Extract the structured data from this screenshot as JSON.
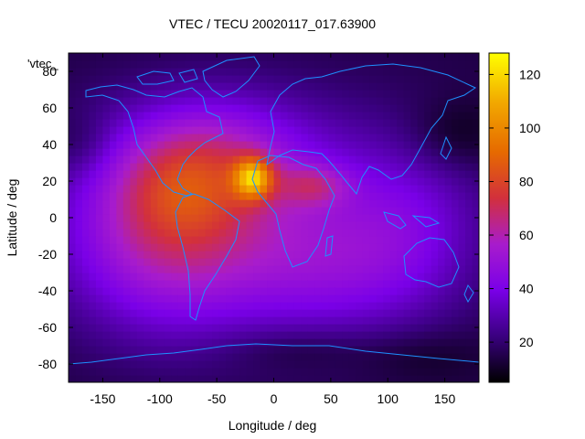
{
  "chart_data": {
    "type": "heatmap",
    "title": "VTEC / TECU 20020117_017.63900",
    "xlabel": "Longitude / deg",
    "ylabel": "Latitude / deg",
    "xlim": [
      -180,
      180
    ],
    "ylim": [
      -90,
      90
    ],
    "x_ticks": [
      -150,
      -100,
      -50,
      0,
      50,
      100,
      150
    ],
    "y_ticks": [
      -80,
      -60,
      -40,
      -20,
      0,
      20,
      40,
      60,
      80
    ],
    "colorbar": {
      "label": "",
      "range": [
        5,
        128
      ],
      "ticks": [
        20,
        40,
        60,
        80,
        100,
        120
      ]
    },
    "legend_key": "'vtec_",
    "grid_step_deg": [
      6,
      4
    ],
    "peak": {
      "lon": -18,
      "lat": 22,
      "value": 125
    },
    "colormap": [
      "#000000",
      "#3a0080",
      "#7a00e8",
      "#a81ccc",
      "#d2303c",
      "#e66a00",
      "#f2a800",
      "#ffff00"
    ],
    "outline_color": "#1e90ff"
  }
}
